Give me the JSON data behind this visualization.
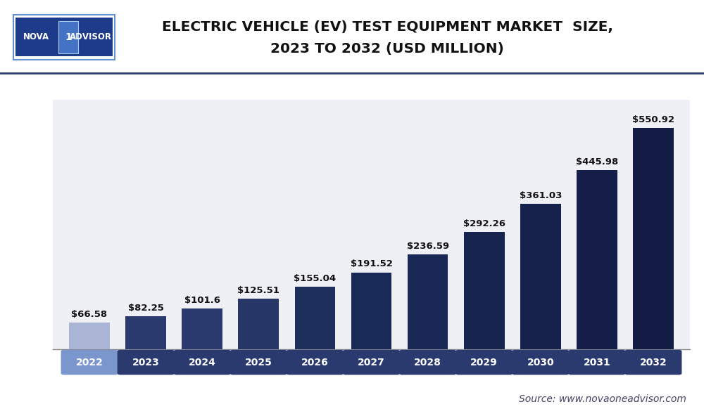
{
  "title_line1": "ELECTRIC VEHICLE (EV) TEST EQUIPMENT MARKET  SIZE,",
  "title_line2": "2023 TO 2032 (USD MILLION)",
  "categories": [
    "2022",
    "2023",
    "2024",
    "2025",
    "2026",
    "2027",
    "2028",
    "2029",
    "2030",
    "2031",
    "2032"
  ],
  "values": [
    66.58,
    82.25,
    101.6,
    125.51,
    155.04,
    191.52,
    236.59,
    292.26,
    361.03,
    445.98,
    550.92
  ],
  "bar_colors": [
    "#aab4d4",
    "#2b3a6e",
    "#2b3a6e",
    "#263666",
    "#1e2f5e",
    "#1a2a58",
    "#192855",
    "#172450",
    "#16214c",
    "#141e48",
    "#131c44"
  ],
  "value_labels": [
    "$66.58",
    "$82.25",
    "$101.6",
    "$125.51",
    "$155.04",
    "$191.52",
    "$236.59",
    "$292.26",
    "$361.03",
    "$445.98",
    "$550.92"
  ],
  "source_text": "Source: www.novaoneadvisor.com",
  "ylim": [
    0,
    620
  ],
  "background_color": "#ffffff",
  "plot_bg_color": "#eef0f5",
  "title_fontsize": 14.5,
  "label_fontsize": 9.5,
  "tick_fontsize": 10,
  "source_fontsize": 10,
  "bar_width": 0.72,
  "logo_bg_color": "#1e3a8a",
  "logo_mid_bg": "#4472c4",
  "grid_color": "#d0d4e0",
  "value_label_color": "#111111",
  "xtick_highlight_2022_color": "#7b96cc",
  "xtick_highlight_color": "#2b3a6e",
  "xtick_text_color": "#ffffff",
  "separator_color": "#2b3a6e"
}
